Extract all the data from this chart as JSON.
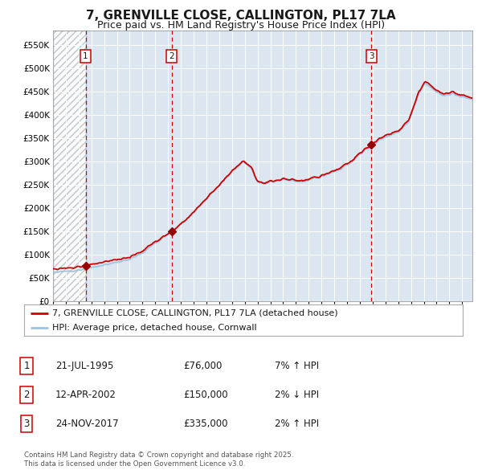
{
  "title": "7, GRENVILLE CLOSE, CALLINGTON, PL17 7LA",
  "subtitle": "Price paid vs. HM Land Registry's House Price Index (HPI)",
  "title_fontsize": 11,
  "subtitle_fontsize": 9,
  "background_color": "#ffffff",
  "plot_bg_color": "#dce6f1",
  "grid_color": "#ffffff",
  "hpi_color": "#a0c4e0",
  "price_color": "#cc0000",
  "marker_color": "#990000",
  "vline_color": "#cc0000",
  "ylim": [
    0,
    580000
  ],
  "yticks": [
    0,
    50000,
    100000,
    150000,
    200000,
    250000,
    300000,
    350000,
    400000,
    450000,
    500000,
    550000
  ],
  "ytick_labels": [
    "£0",
    "£50K",
    "£100K",
    "£150K",
    "£200K",
    "£250K",
    "£300K",
    "£350K",
    "£400K",
    "£450K",
    "£500K",
    "£550K"
  ],
  "sale1_date": 1995.55,
  "sale1_price": 76000,
  "sale2_date": 2002.28,
  "sale2_price": 150000,
  "sale3_date": 2017.9,
  "sale3_price": 335000,
  "xlim_start": 1993.0,
  "xlim_end": 2025.8,
  "hatch_start": 1993.0,
  "hatch_end": 1995.55,
  "legend_label_price": "7, GRENVILLE CLOSE, CALLINGTON, PL17 7LA (detached house)",
  "legend_label_hpi": "HPI: Average price, detached house, Cornwall",
  "table_data": [
    {
      "num": 1,
      "date": "21-JUL-1995",
      "price": "£76,000",
      "note": "7% ↑ HPI"
    },
    {
      "num": 2,
      "date": "12-APR-2002",
      "price": "£150,000",
      "note": "2% ↓ HPI"
    },
    {
      "num": 3,
      "date": "24-NOV-2017",
      "price": "£335,000",
      "note": "2% ↑ HPI"
    }
  ],
  "footnote": "Contains HM Land Registry data © Crown copyright and database right 2025.\nThis data is licensed under the Open Government Licence v3.0.",
  "hpi_key_x": [
    1993.0,
    1994.0,
    1994.5,
    1995.0,
    1995.55,
    1996.0,
    1997.0,
    1998.0,
    1999.0,
    2000.0,
    2001.0,
    2002.0,
    2002.28,
    2003.0,
    2004.0,
    2005.0,
    2006.0,
    2007.0,
    2007.5,
    2007.9,
    2008.5,
    2009.0,
    2009.5,
    2010.0,
    2010.5,
    2011.0,
    2011.5,
    2012.0,
    2012.5,
    2013.0,
    2013.5,
    2014.0,
    2014.5,
    2015.0,
    2015.5,
    2016.0,
    2016.5,
    2017.0,
    2017.5,
    2017.9,
    2018.0,
    2018.5,
    2019.0,
    2019.5,
    2020.0,
    2020.3,
    2020.8,
    2021.0,
    2021.3,
    2021.6,
    2021.9,
    2022.1,
    2022.4,
    2022.7,
    2023.0,
    2023.3,
    2023.6,
    2023.9,
    2024.2,
    2024.5,
    2024.8,
    2025.0,
    2025.3,
    2025.5
  ],
  "hpi_key_y": [
    62000,
    64000,
    65500,
    67000,
    70000,
    72000,
    77000,
    83000,
    90000,
    103000,
    125000,
    143000,
    148000,
    165000,
    190000,
    220000,
    248000,
    278000,
    290000,
    300000,
    285000,
    255000,
    250000,
    255000,
    258000,
    262000,
    260000,
    258000,
    255000,
    260000,
    265000,
    268000,
    272000,
    278000,
    283000,
    293000,
    302000,
    315000,
    325000,
    330000,
    333000,
    345000,
    352000,
    358000,
    362000,
    370000,
    385000,
    400000,
    420000,
    445000,
    458000,
    468000,
    462000,
    455000,
    448000,
    444000,
    442000,
    443000,
    445000,
    443000,
    440000,
    438000,
    436000,
    435000
  ]
}
